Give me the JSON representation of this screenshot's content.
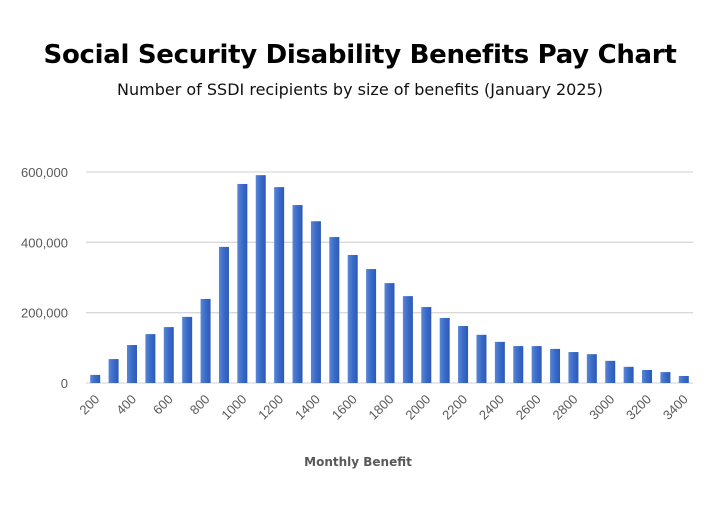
{
  "chart_data": {
    "type": "bar",
    "title": "Social Security Disability Benefits Pay Chart",
    "subtitle": "Number of SSDI recipients by size of benefits (January 2025)",
    "xlabel": "Monthly Benefit",
    "ylabel": "",
    "ylim": [
      0,
      600000
    ],
    "yticks": [
      "0",
      "200,000",
      "400,000",
      "600,000"
    ],
    "ytick_values": [
      0,
      200000,
      400000,
      600000
    ],
    "grid": true,
    "bar_color": "#3a6bc9",
    "categories": [
      200,
      300,
      400,
      500,
      600,
      700,
      800,
      900,
      1000,
      1100,
      1200,
      1300,
      1400,
      1500,
      1600,
      1700,
      1800,
      1900,
      2000,
      2100,
      2200,
      2300,
      2400,
      2500,
      2600,
      2700,
      2800,
      2900,
      3000,
      3100,
      3200,
      3300,
      3400
    ],
    "xtick_labels": [
      "200",
      "400",
      "600",
      "800",
      "1000",
      "1200",
      "1400",
      "1600",
      "1800",
      "2000",
      "2200",
      "2400",
      "2600",
      "2800",
      "3000",
      "3200",
      "3400"
    ],
    "values": [
      23000,
      68000,
      108000,
      139000,
      159000,
      188000,
      239000,
      387000,
      566000,
      591000,
      557000,
      506000,
      460000,
      415000,
      364000,
      324000,
      284000,
      247000,
      216000,
      185000,
      162000,
      137000,
      117000,
      105000,
      105000,
      97000,
      88000,
      82000,
      63000,
      46000,
      37000,
      31000,
      20000
    ]
  }
}
